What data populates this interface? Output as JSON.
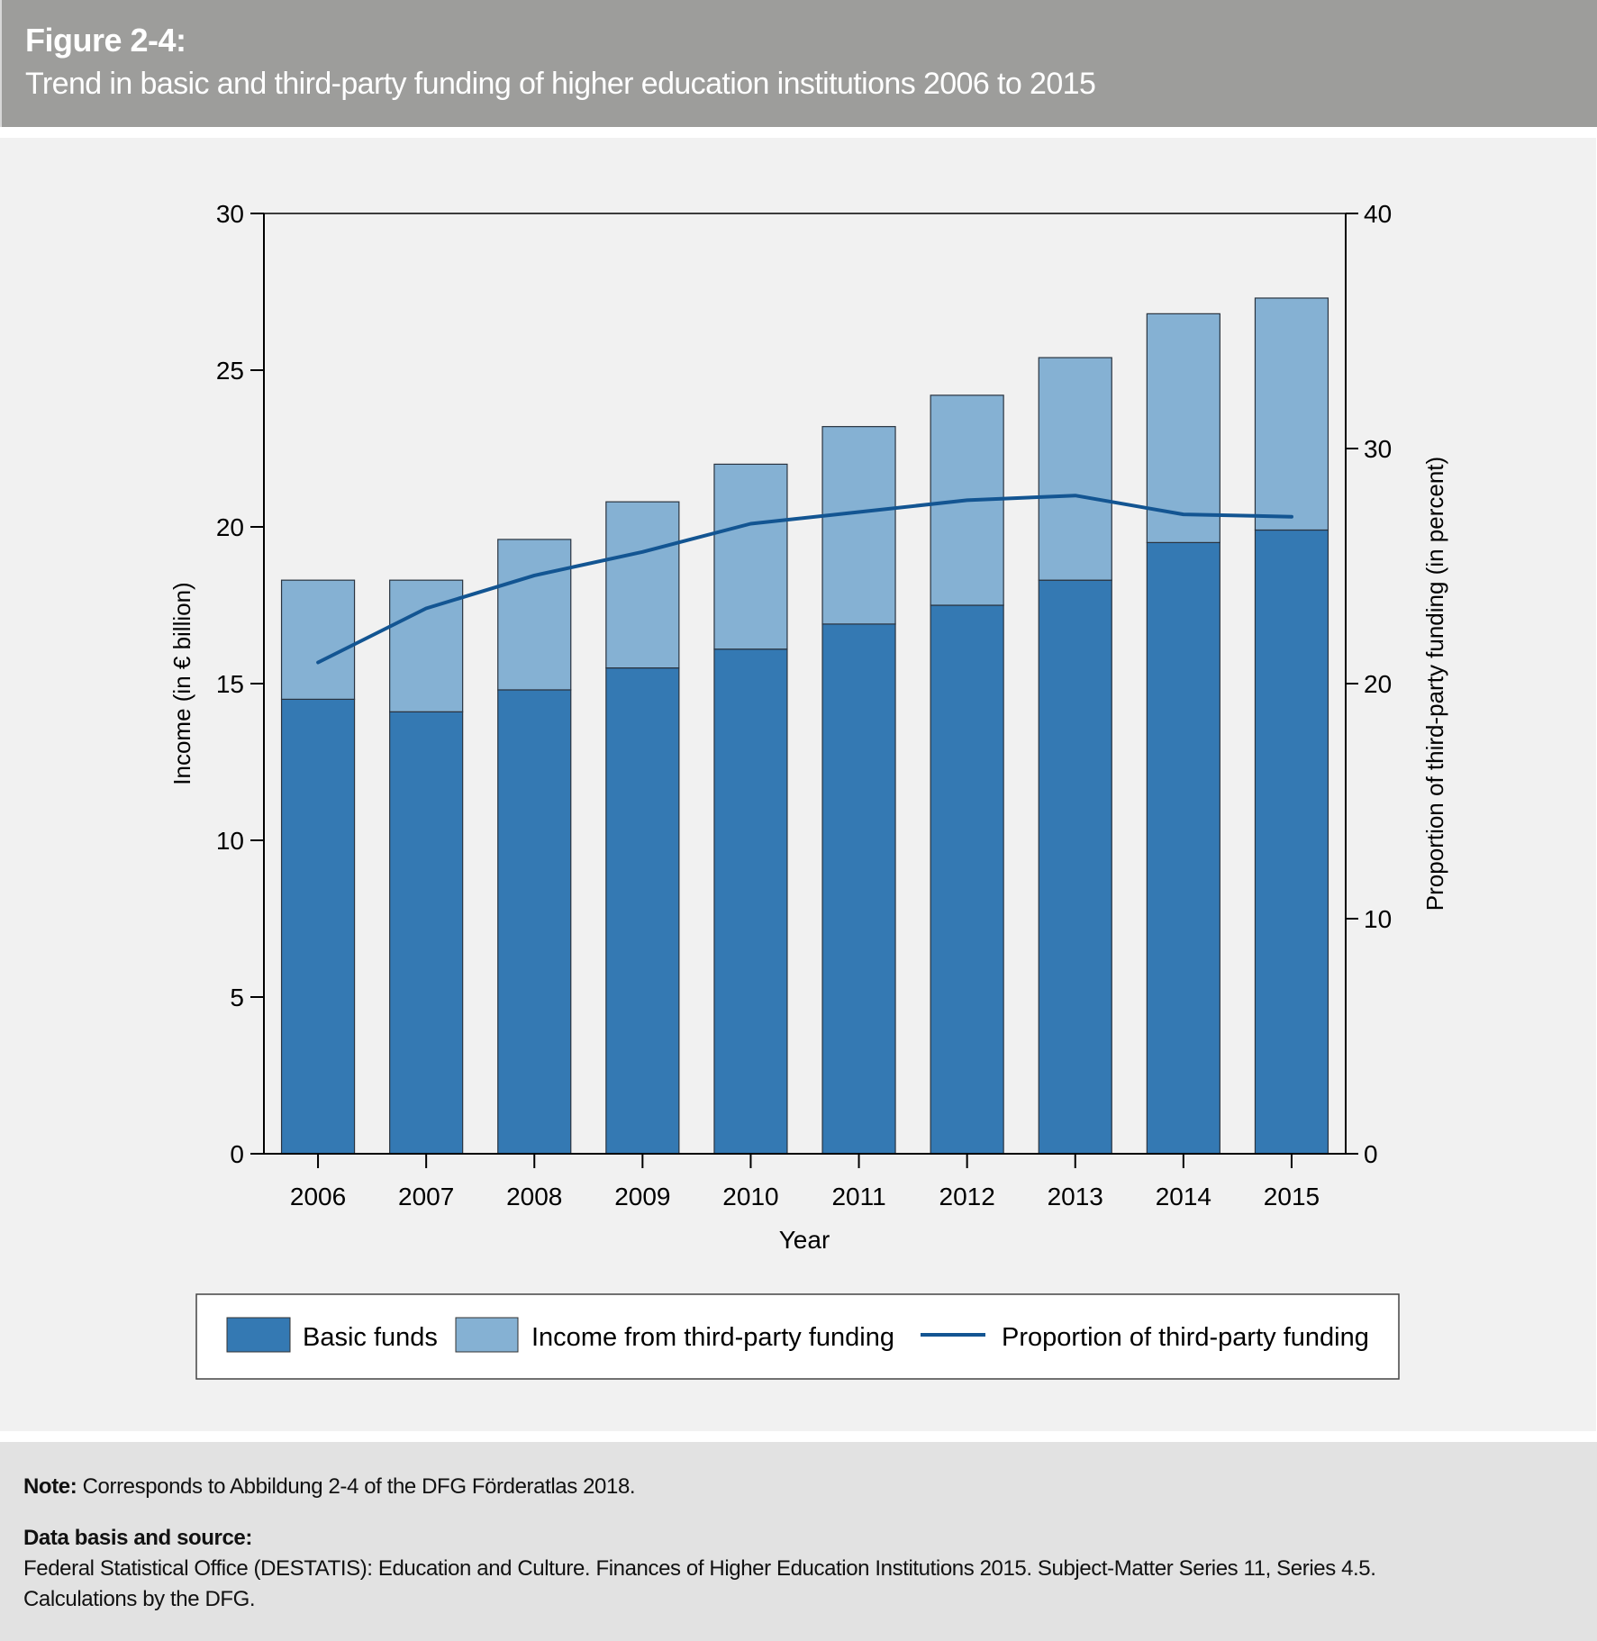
{
  "header": {
    "figure_number": "Figure 2-4:",
    "title": "Trend in basic and third-party funding of higher education institutions 2006 to 2015"
  },
  "notes": {
    "note_label": "Note:",
    "note_text": " Corresponds to Abbildung 2-4 of the DFG Förderatlas 2018.",
    "source_label": "Data basis and source:",
    "source_line1": "Federal Statistical Office (DESTATIS): Education and Culture. Finances of Higher Education Institutions 2015. Subject-Matter Series 11, Series 4.5.",
    "source_line2": "Calculations by the DFG."
  },
  "colors": {
    "basic_funds": "#3479b3",
    "third_party": "#85b1d3",
    "proportion_line": "#135592",
    "axis": "#000000"
  },
  "chart_data": {
    "type": "bar",
    "stacked": true,
    "title": "Trend in basic and third-party funding of higher education institutions 2006 to 2015",
    "xlabel": "Year",
    "ylabel": "Income (in € billion)",
    "y2label": "Proportion of third-party funding (in percent)",
    "categories": [
      "2006",
      "2007",
      "2008",
      "2009",
      "2010",
      "2011",
      "2012",
      "2013",
      "2014",
      "2015"
    ],
    "ylim": [
      0,
      30
    ],
    "yticks": [
      0,
      5,
      10,
      15,
      20,
      25,
      30
    ],
    "y2lim": [
      0,
      40
    ],
    "y2ticks": [
      0,
      10,
      20,
      30,
      40
    ],
    "grid": false,
    "legend_position": "bottom",
    "series": [
      {
        "name": "Basic funds",
        "kind": "bar",
        "axis": "left",
        "values": [
          14.5,
          14.1,
          14.8,
          15.5,
          16.1,
          16.9,
          17.5,
          18.3,
          19.5,
          19.9
        ]
      },
      {
        "name": "Income from third-party funding",
        "kind": "bar",
        "axis": "left",
        "values": [
          3.8,
          4.2,
          4.8,
          5.3,
          5.9,
          6.3,
          6.7,
          7.1,
          7.3,
          7.4
        ]
      },
      {
        "name": "Proportion of third-party funding",
        "kind": "line",
        "axis": "right",
        "values": [
          20.9,
          23.2,
          24.6,
          25.6,
          26.8,
          27.3,
          27.8,
          28.0,
          27.2,
          27.1
        ]
      }
    ]
  }
}
